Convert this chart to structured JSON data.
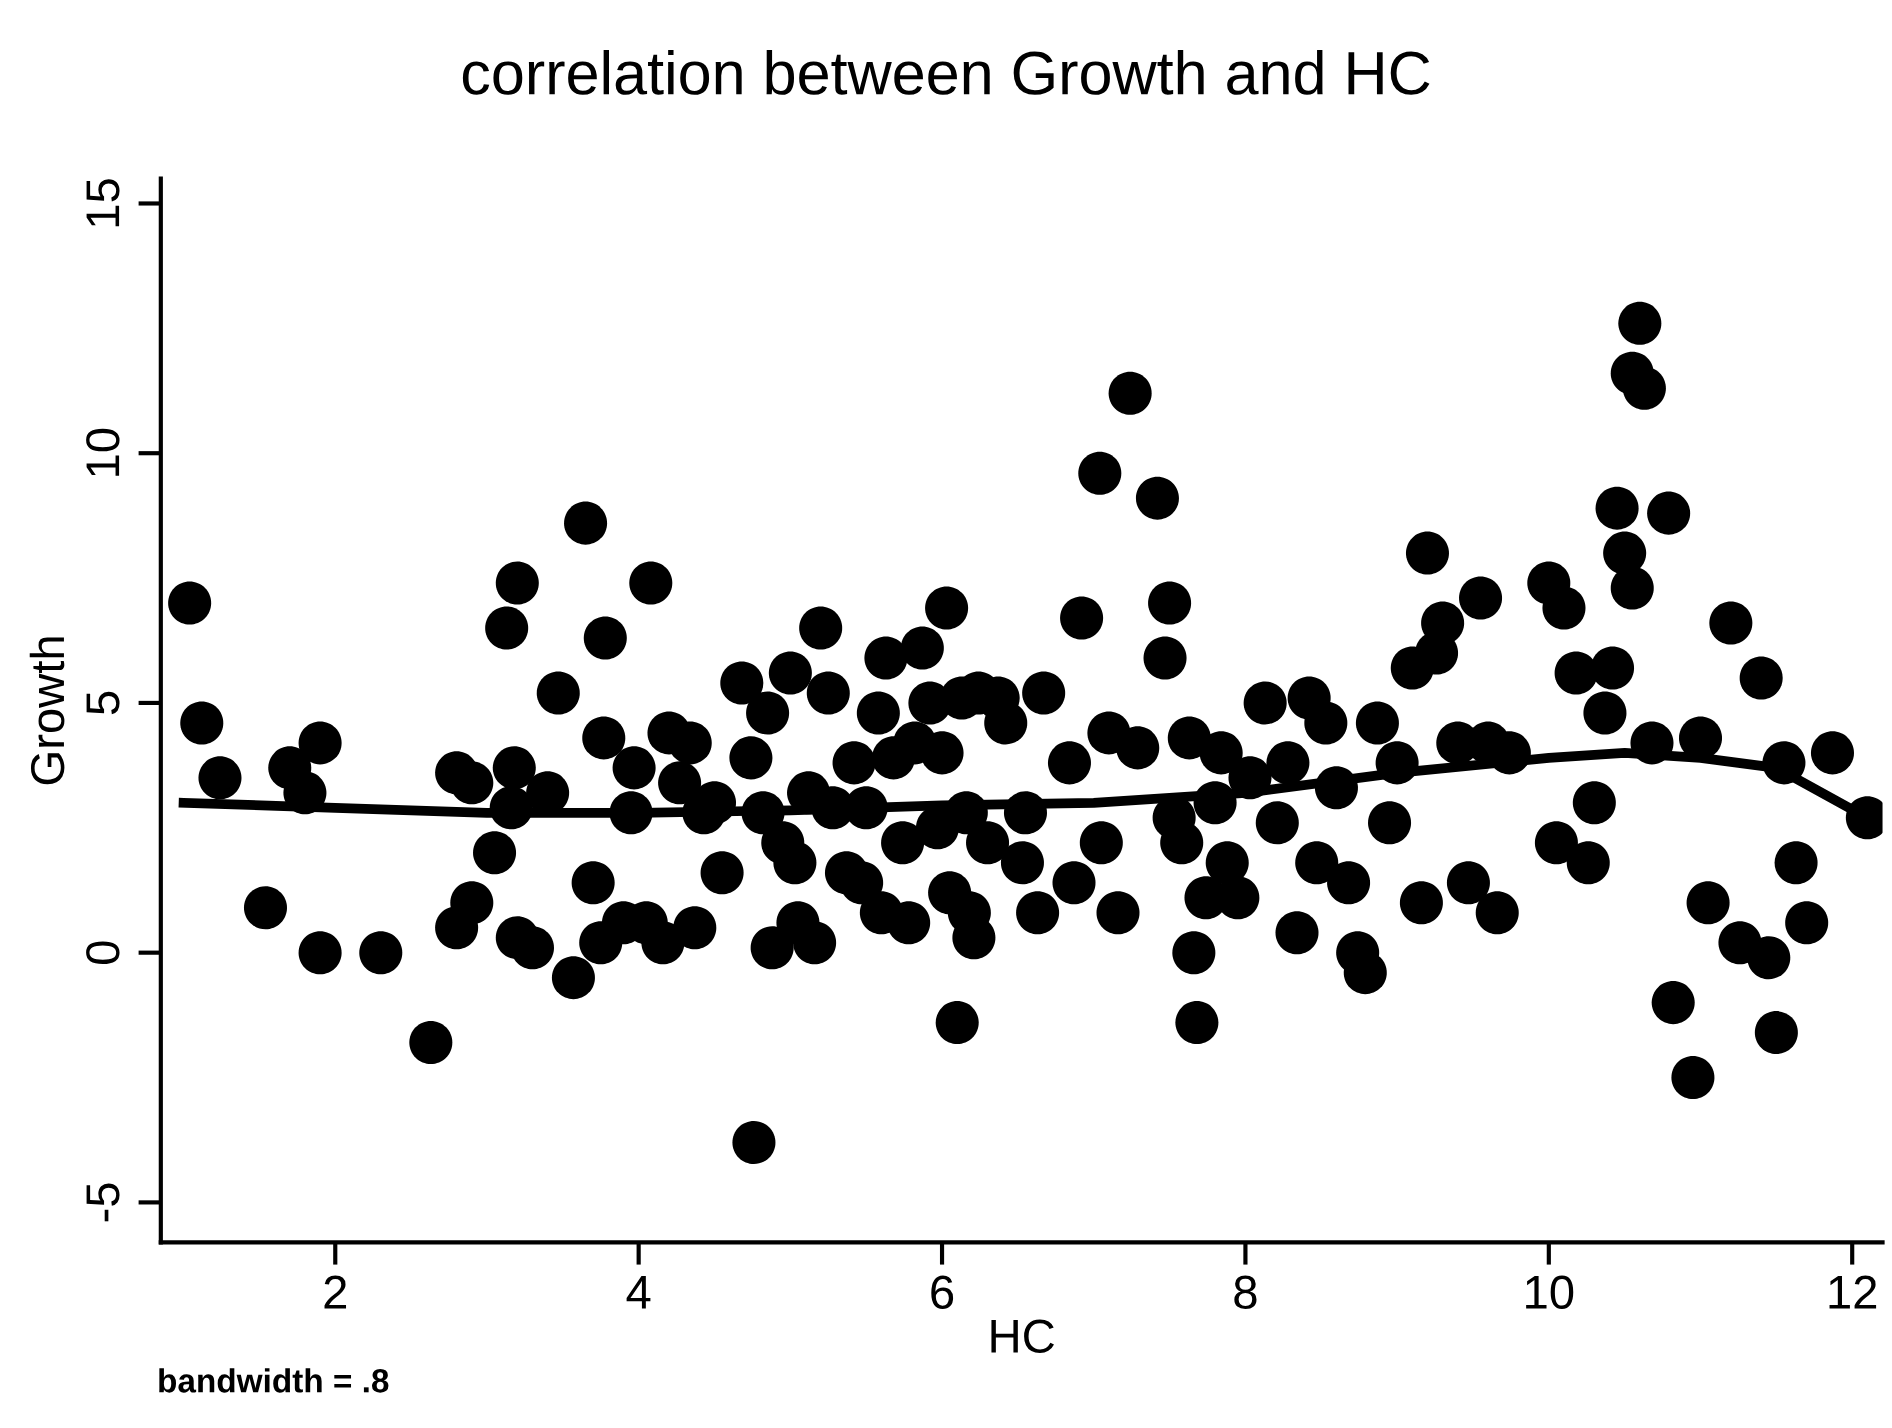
{
  "chart_data": {
    "type": "scatter",
    "title": "correlation between Growth and HC",
    "xlabel": "HC",
    "ylabel": "Growth",
    "annotations": [
      "bandwidth = .8"
    ],
    "xlim": [
      0.85,
      12.2
    ],
    "ylim": [
      -5.8,
      15.5
    ],
    "xticks": [
      2,
      4,
      6,
      8,
      10,
      12
    ],
    "yticks": [
      -5,
      0,
      5,
      10,
      15
    ],
    "grid": false,
    "legend": false,
    "series": [
      {
        "marker": "circle",
        "color": "#000000",
        "x": [
          1.04,
          1.12,
          1.24,
          1.54,
          1.7,
          1.8,
          1.9,
          1.9,
          2.3,
          2.63,
          2.8,
          2.9,
          2.8,
          2.9,
          3.05,
          3.13,
          3.2,
          3.18,
          3.16,
          3.2,
          3.3,
          3.4,
          3.47,
          3.57,
          3.65,
          3.7,
          3.75,
          3.77,
          3.78,
          3.9,
          3.95,
          3.97,
          4.05,
          4.08,
          4.16,
          4.2,
          4.27,
          4.34,
          4.37,
          4.43,
          4.5,
          4.55,
          4.68,
          4.74,
          4.76,
          4.82,
          4.85,
          4.88,
          4.95,
          5.0,
          5.03,
          5.05,
          5.12,
          5.16,
          5.2,
          5.25,
          5.28,
          5.37,
          5.42,
          5.47,
          5.5,
          5.58,
          5.6,
          5.63,
          5.68,
          5.74,
          5.78,
          5.82,
          5.87,
          5.92,
          5.97,
          6.0,
          6.03,
          6.05,
          6.1,
          6.13,
          6.16,
          6.18,
          6.21,
          6.24,
          6.3,
          6.37,
          6.42,
          6.53,
          6.55,
          6.63,
          6.67,
          6.84,
          6.92,
          6.87,
          7.04,
          7.1,
          7.05,
          7.16,
          7.24,
          7.29,
          7.42,
          7.47,
          7.5,
          7.53,
          7.58,
          7.63,
          7.66,
          7.68,
          7.74,
          7.8,
          7.84,
          7.88,
          7.95,
          8.03,
          8.13,
          8.21,
          8.28,
          8.34,
          8.42,
          8.47,
          8.53,
          8.6,
          8.68,
          8.74,
          8.79,
          8.87,
          8.95,
          9.0,
          9.1,
          9.16,
          9.2,
          9.26,
          9.3,
          9.4,
          9.47,
          9.55,
          9.6,
          9.66,
          9.74,
          10.0,
          10.05,
          10.1,
          10.18,
          10.26,
          10.3,
          10.37,
          10.42,
          10.45,
          10.5,
          10.55,
          10.55,
          10.6,
          10.63,
          10.68,
          10.79,
          10.82,
          10.95,
          11.0,
          11.05,
          11.2,
          11.26,
          11.4,
          11.45,
          11.5,
          11.55,
          11.63,
          11.7,
          11.87,
          12.1
        ],
        "values": [
          7.0,
          4.6,
          3.5,
          0.9,
          3.7,
          3.2,
          4.2,
          0,
          0,
          -1.8,
          0.5,
          1.0,
          3.6,
          3.4,
          2.0,
          6.5,
          7.4,
          3.7,
          2.9,
          0.3,
          0.1,
          3.2,
          5.2,
          -0.5,
          8.6,
          1.4,
          0.2,
          4.3,
          6.3,
          0.6,
          2.8,
          3.7,
          0.6,
          7.4,
          0.2,
          4.4,
          3.4,
          4.2,
          0.5,
          2.8,
          3.0,
          1.6,
          5.4,
          3.9,
          -3.8,
          2.8,
          4.8,
          0.1,
          2.2,
          5.6,
          1.8,
          0.6,
          3.2,
          0.2,
          6.5,
          5.2,
          2.9,
          1.6,
          3.8,
          1.4,
          2.9,
          4.8,
          0.8,
          5.9,
          3.9,
          2.2,
          0.6,
          4.2,
          6.1,
          5.0,
          2.5,
          4.0,
          6.9,
          1.2,
          -1.4,
          5.1,
          2.8,
          0.8,
          0.3,
          5.2,
          2.2,
          5.1,
          4.6,
          1.8,
          2.8,
          0.8,
          5.2,
          3.8,
          6.7,
          1.4,
          9.6,
          4.4,
          2.2,
          0.8,
          11.2,
          4.1,
          9.1,
          5.9,
          7.0,
          2.7,
          2.2,
          4.3,
          0,
          -1.4,
          1.1,
          3.0,
          4.0,
          1.8,
          1.1,
          3.5,
          5.0,
          2.6,
          3.8,
          0.4,
          5.1,
          1.8,
          4.6,
          3.3,
          1.4,
          0,
          -0.4,
          4.6,
          2.6,
          3.8,
          5.7,
          1.0,
          8.0,
          6.0,
          6.6,
          4.2,
          1.4,
          7.1,
          4.2,
          0.8,
          4.0,
          7.4,
          2.2,
          6.9,
          5.6,
          1.8,
          3.0,
          4.8,
          5.7,
          8.9,
          8.0,
          7.3,
          11.6,
          12.6,
          11.3,
          4.2,
          8.8,
          -1.0,
          -2.5,
          4.3,
          1.0,
          6.6,
          0.2,
          5.5,
          -0.1,
          -1.6,
          3.8,
          1.8,
          0.6,
          4.0,
          2.7
        ]
      },
      {
        "type": "line",
        "marker": "none",
        "color": "#000000",
        "x": [
          1.0,
          2,
          3,
          4,
          5,
          6,
          7,
          8,
          9,
          10,
          10.5,
          11,
          11.5,
          12.1
        ],
        "values": [
          3.0,
          2.9,
          2.8,
          2.8,
          2.85,
          2.95,
          3.0,
          3.2,
          3.6,
          3.9,
          4.0,
          3.9,
          3.7,
          2.7
        ]
      }
    ]
  }
}
